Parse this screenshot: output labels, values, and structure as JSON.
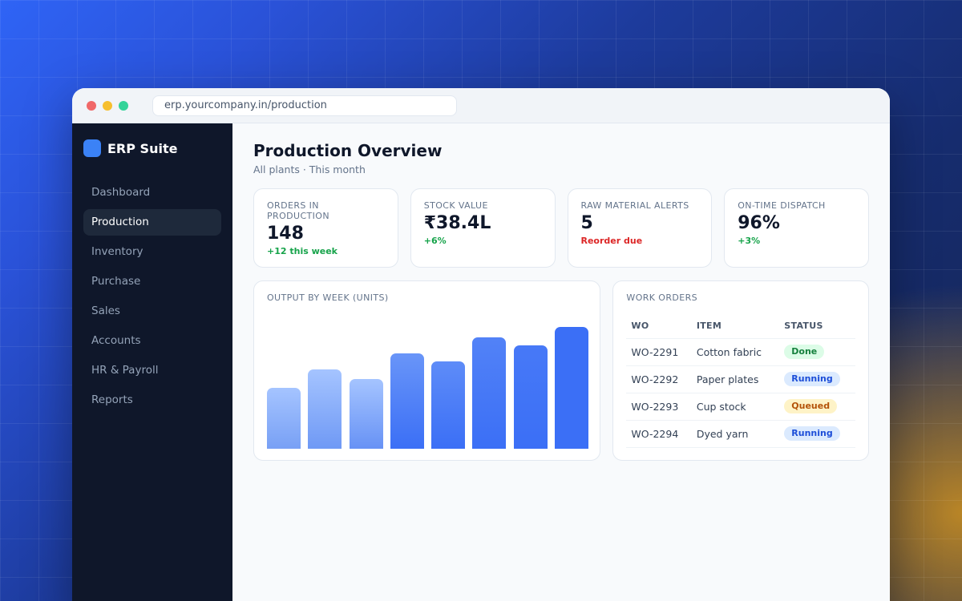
{
  "browser": {
    "url": "erp.yourcompany.in/production"
  },
  "sidebar": {
    "brand": "ERP Suite",
    "items": [
      {
        "label": "Dashboard",
        "active": false
      },
      {
        "label": "Production",
        "active": true
      },
      {
        "label": "Inventory",
        "active": false
      },
      {
        "label": "Purchase",
        "active": false
      },
      {
        "label": "Sales",
        "active": false
      },
      {
        "label": "Accounts",
        "active": false
      },
      {
        "label": "HR & Payroll",
        "active": false
      },
      {
        "label": "Reports",
        "active": false
      }
    ]
  },
  "header": {
    "title": "Production Overview",
    "subtitle": "All plants · This month"
  },
  "kpis": [
    {
      "label": "Orders in production",
      "value": "148",
      "delta": "+12 this week",
      "tone": "up"
    },
    {
      "label": "Stock value",
      "value": "₹38.4L",
      "delta": "+6%",
      "tone": "up"
    },
    {
      "label": "Raw material alerts",
      "value": "5",
      "delta": "Reorder due",
      "tone": "warn"
    },
    {
      "label": "On-time dispatch",
      "value": "96%",
      "delta": "+3%",
      "tone": "up"
    }
  ],
  "chart": {
    "title": "Output by week (units)"
  },
  "chart_data": {
    "type": "bar",
    "title": "Output by week (units)",
    "categories": [
      "",
      "",
      "",
      "",
      "",
      "",
      "",
      ""
    ],
    "values": [
      46,
      60,
      53,
      72,
      66,
      84,
      78,
      92
    ],
    "ylim": [
      0,
      100
    ],
    "grid": false,
    "colors": {
      "top": "#3b6ff6",
      "bottom": "#a5c4ff"
    }
  },
  "work_orders": {
    "title": "Work orders",
    "columns": [
      "WO",
      "ITEM",
      "STATUS"
    ],
    "rows": [
      {
        "wo": "WO-2291",
        "item": "Cotton fabric",
        "status": "Done",
        "tone": "done"
      },
      {
        "wo": "WO-2292",
        "item": "Paper plates",
        "status": "Running",
        "tone": "running"
      },
      {
        "wo": "WO-2293",
        "item": "Cup stock",
        "status": "Queued",
        "tone": "queued"
      },
      {
        "wo": "WO-2294",
        "item": "Dyed yarn",
        "status": "Running",
        "tone": "running"
      }
    ]
  }
}
